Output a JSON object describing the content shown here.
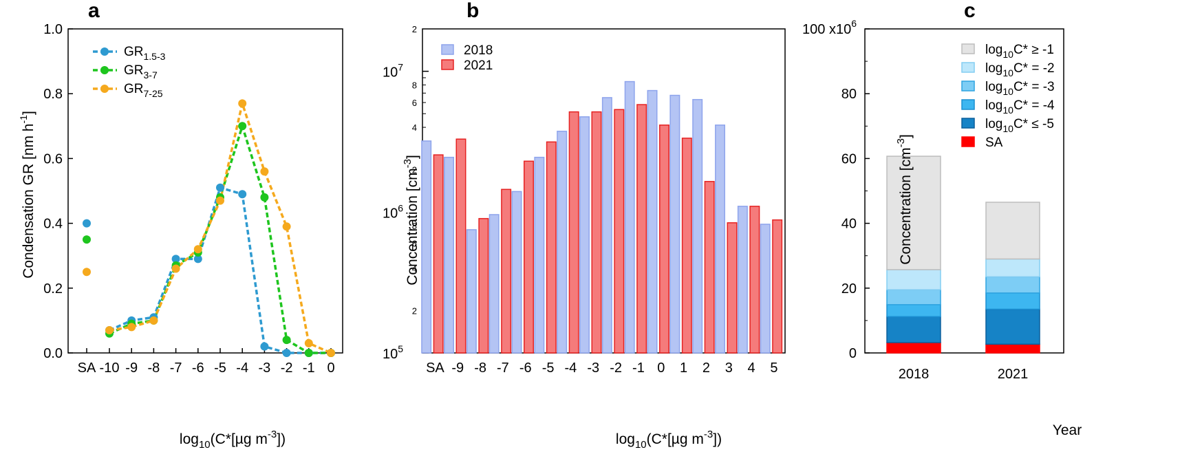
{
  "chart_data": [
    {
      "panel": "a",
      "type": "line",
      "xlabel": "log10(C*[µg m-3])",
      "ylabel": "Condensation GR [nm h-1]",
      "ylim": [
        0.0,
        1.0
      ],
      "yticks": [
        "0.0",
        "0.2",
        "0.4",
        "0.6",
        "0.8",
        "1.0"
      ],
      "categories": [
        "SA",
        "-10",
        "-9",
        "-8",
        "-7",
        "-6",
        "-5",
        "-4",
        "-3",
        "-2",
        "-1",
        "0"
      ],
      "legend": "top-left",
      "series": [
        {
          "name": "GR1.5-3",
          "color": "#2e9ad0",
          "values": [
            0.4,
            0.07,
            0.1,
            0.11,
            0.29,
            0.29,
            0.51,
            0.49,
            0.02,
            0.0,
            0.0,
            0.0
          ]
        },
        {
          "name": "GR3-7",
          "color": "#1ec51e",
          "values": [
            0.35,
            0.06,
            0.09,
            0.1,
            0.27,
            0.31,
            0.48,
            0.7,
            0.48,
            0.04,
            0.0,
            0.0
          ]
        },
        {
          "name": "GR7-25",
          "color": "#f5a91d",
          "values": [
            0.25,
            0.07,
            0.08,
            0.1,
            0.26,
            0.32,
            0.47,
            0.77,
            0.56,
            0.39,
            0.03,
            0.0
          ]
        }
      ]
    },
    {
      "panel": "b",
      "type": "bar",
      "xlabel": "log10(C*[µg m-3])",
      "ylabel": "Concentration [cm-3]",
      "yscale": "log",
      "ylim": [
        100000,
        20000000
      ],
      "categories": [
        "SA",
        "-9",
        "-8",
        "-7",
        "-6",
        "-5",
        "-4",
        "-3",
        "-2",
        "-1",
        "0",
        "1",
        "2",
        "3",
        "4",
        "5"
      ],
      "legend": "top-left",
      "series": [
        {
          "name": "2018",
          "color": "#b4c4f4",
          "edge": "#8ea4ec",
          "values": [
            3200000,
            2450000,
            750000,
            960000,
            1400000,
            2450000,
            3750000,
            4750000,
            6500000,
            8450000,
            7300000,
            6750000,
            6300000,
            4150000,
            1100000,
            820000
          ]
        },
        {
          "name": "2021",
          "color": "#f57b7b",
          "edge": "#e52222",
          "values": [
            2550000,
            3300000,
            900000,
            1450000,
            2300000,
            3150000,
            5150000,
            5150000,
            5350000,
            5800000,
            4150000,
            3350000,
            1650000,
            840000,
            1100000,
            880000
          ]
        }
      ]
    },
    {
      "panel": "c",
      "type": "bar",
      "stacked": true,
      "xlabel": "Year",
      "ylabel": "Concentration [cm-3]",
      "ylim": [
        0,
        100
      ],
      "ymultiplier": "x10^6",
      "categories": [
        "2018",
        "2021"
      ],
      "legend": "top-right",
      "series": [
        {
          "name": "SA",
          "color": "#ff0000",
          "edge": "#ff0000",
          "values": [
            3.2,
            2.7
          ]
        },
        {
          "name": "log10C* ≤ -5",
          "color": "#1683c6",
          "edge": "#0b5f9c",
          "values": [
            8.0,
            10.8
          ]
        },
        {
          "name": "log10C* = -4",
          "color": "#3db6f0",
          "edge": "#1b8fd1",
          "values": [
            3.7,
            5.0
          ]
        },
        {
          "name": "log10C* = -3",
          "color": "#7dcdf5",
          "edge": "#2fa4e0",
          "values": [
            4.6,
            5.0
          ]
        },
        {
          "name": "log10C* = -2",
          "color": "#bde7fb",
          "edge": "#84cdf2",
          "values": [
            6.2,
            5.5
          ]
        },
        {
          "name": "log10C* ≥ -1",
          "color": "#e4e4e4",
          "edge": "#bdbdbd",
          "values": [
            35.0,
            17.5
          ]
        }
      ]
    }
  ]
}
